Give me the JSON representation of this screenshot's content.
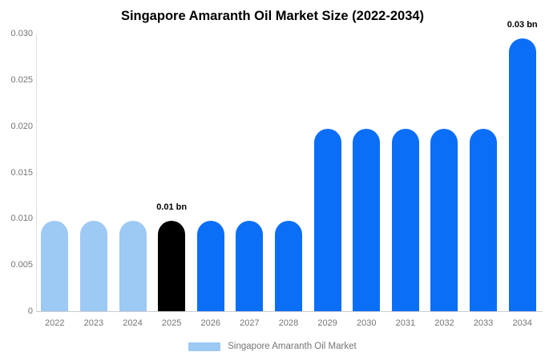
{
  "chart_data": {
    "type": "bar",
    "title": "Singapore Amaranth Oil Market Size (2022-2034)",
    "unit": "bn",
    "categories": [
      "2022",
      "2023",
      "2024",
      "2025",
      "2026",
      "2027",
      "2028",
      "2029",
      "2030",
      "2031",
      "2032",
      "2033",
      "2034"
    ],
    "values": [
      0.0098,
      0.0098,
      0.0098,
      0.0098,
      0.0098,
      0.0098,
      0.0098,
      0.0197,
      0.0197,
      0.0197,
      0.0197,
      0.0197,
      0.0295
    ],
    "bar_colors": [
      "light",
      "light",
      "light",
      "dark",
      "primary",
      "primary",
      "primary",
      "primary",
      "primary",
      "primary",
      "primary",
      "primary",
      "primary"
    ],
    "annotations": [
      {
        "index": 3,
        "text": "0.01 bn"
      },
      {
        "index": 12,
        "text": "0.03 bn"
      }
    ],
    "yticks": [
      0,
      0.005,
      0.01,
      0.015,
      0.02,
      0.025,
      0.03
    ],
    "ytick_labels": [
      "0",
      "0.005",
      "0.010",
      "0.015",
      "0.020",
      "0.025",
      "0.030"
    ],
    "ylim": [
      0,
      0.03
    ],
    "grid": false,
    "legend": "Singapore Amaranth Oil Market",
    "legend_position": "bottom",
    "colors": {
      "light": "#9dc9f5",
      "primary": "#0a6ef7",
      "dark": "#000000",
      "axis_line": "#dedede",
      "baseline": "#cccccc",
      "tick_text": "#757575",
      "background": "#ffffff"
    }
  }
}
